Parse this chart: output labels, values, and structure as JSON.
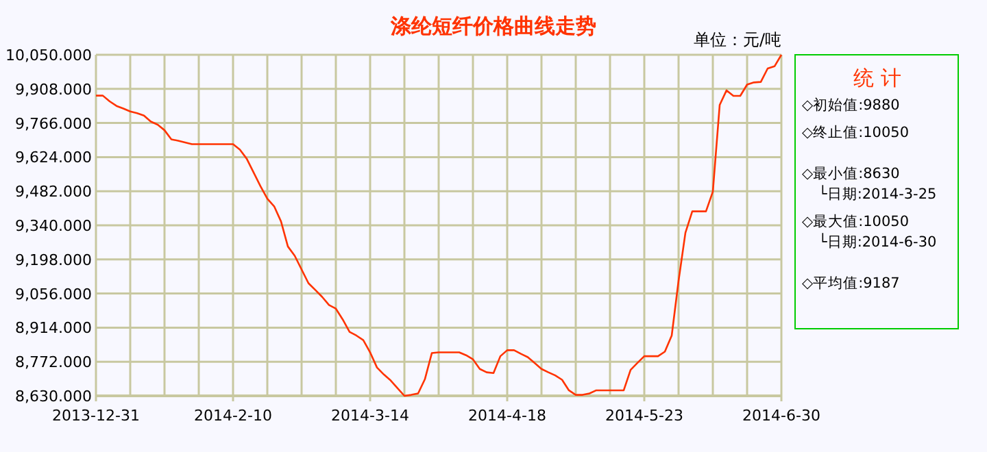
{
  "chart_data": {
    "type": "line",
    "title": "涤纶短纤价格曲线走势",
    "ylabel": "单位：元/吨",
    "categories": [
      "2013-12-31",
      null,
      null,
      null,
      null,
      null,
      null,
      null,
      null,
      null,
      null,
      null,
      null,
      null,
      null,
      null,
      null,
      null,
      null,
      null,
      "2014-2-10",
      null,
      null,
      null,
      null,
      null,
      null,
      null,
      null,
      null,
      null,
      null,
      null,
      null,
      null,
      null,
      null,
      null,
      null,
      null,
      "2014-3-14",
      null,
      null,
      null,
      null,
      null,
      null,
      null,
      null,
      null,
      null,
      null,
      null,
      null,
      null,
      null,
      null,
      null,
      null,
      null,
      "2014-4-18",
      null,
      null,
      null,
      null,
      null,
      null,
      null,
      null,
      null,
      null,
      null,
      null,
      null,
      null,
      null,
      null,
      null,
      null,
      null,
      "2014-5-23",
      null,
      null,
      null,
      null,
      null,
      null,
      null,
      null,
      null,
      null,
      null,
      null,
      null,
      null,
      null,
      null,
      null,
      null,
      null,
      "2014-6-30"
    ],
    "series": [
      {
        "color": "#ff3300",
        "values": [
          9880,
          9880,
          9856,
          9837,
          9826,
          9814,
          9807,
          9797,
          9772,
          9759,
          9736,
          9698,
          9692,
          9685,
          9678,
          9678,
          9678,
          9678,
          9678,
          9678,
          9678,
          9655,
          9617,
          9560,
          9503,
          9451,
          9419,
          9356,
          9252,
          9213,
          9156,
          9099,
          9071,
          9042,
          9008,
          8993,
          8948,
          8896,
          8881,
          8862,
          8811,
          8748,
          8719,
          8694,
          8662,
          8630,
          8634,
          8640,
          8700,
          8808,
          8811,
          8811,
          8811,
          8811,
          8799,
          8782,
          8742,
          8728,
          8725,
          8795,
          8820,
          8820,
          8805,
          8791,
          8767,
          8742,
          8728,
          8715,
          8697,
          8653,
          8634,
          8634,
          8640,
          8653,
          8653,
          8653,
          8653,
          8653,
          8738,
          8767,
          8795,
          8795,
          8795,
          8814,
          8881,
          9109,
          9309,
          9398,
          9398,
          9398,
          9480,
          9841,
          9902,
          9879,
          9879,
          9926,
          9935,
          9937,
          9993,
          10002,
          10050
        ]
      }
    ],
    "ylim": [
      8630,
      10050
    ],
    "yticks": [
      {
        "value": 8630,
        "label": "8,630.000"
      },
      {
        "value": 8772,
        "label": "8,772.000"
      },
      {
        "value": 8914,
        "label": "8,914.000"
      },
      {
        "value": 9056,
        "label": "9,056.000"
      },
      {
        "value": 9198,
        "label": "9,198.000"
      },
      {
        "value": 9340,
        "label": "9,340.000"
      },
      {
        "value": 9482,
        "label": "9,482.000"
      },
      {
        "value": 9624,
        "label": "9,624.000"
      },
      {
        "value": 9766,
        "label": "9,766.000"
      },
      {
        "value": 9908,
        "label": "9,908.000"
      },
      {
        "value": 10050,
        "label": "10,050.000"
      }
    ],
    "grid": true,
    "marker": "none",
    "line_style": "solid",
    "annotations": [
      "统  计",
      "◇初始值:9880",
      "◇终止值:10050",
      "◇最小值:8630",
      "└日期:2014-3-25",
      "◇最大值:10050",
      "└日期:2014-6-30",
      "◇平均值:9187"
    ]
  }
}
